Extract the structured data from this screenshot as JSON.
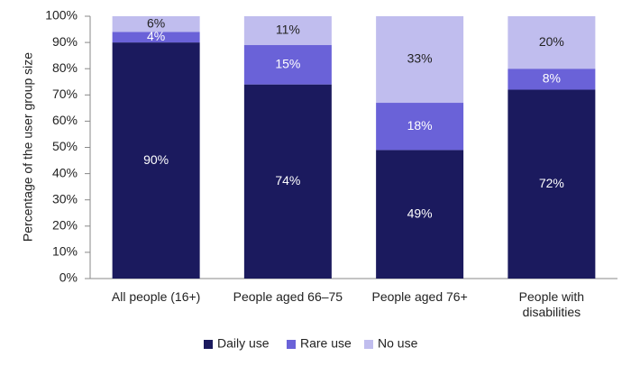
{
  "chart_data": {
    "type": "stacked-bar",
    "y_label": "Percentage of the user group size",
    "categories": [
      "All people (16+)",
      "People aged 66–75",
      "People aged 76+",
      "People with disabilities"
    ],
    "series": [
      {
        "name": "Daily use",
        "color": "#1b1a5e",
        "values": [
          90,
          74,
          49,
          72
        ],
        "value_labels": [
          "90%",
          "74%",
          "49%",
          "72%"
        ]
      },
      {
        "name": "Rare use",
        "color": "#6a62d8",
        "values": [
          4,
          15,
          18,
          8
        ],
        "value_labels": [
          "4%",
          "15%",
          "18%",
          "8%"
        ]
      },
      {
        "name": "No use",
        "color": "#c0bdee",
        "values": [
          6,
          11,
          33,
          20
        ],
        "value_labels": [
          "6%",
          "11%",
          "33%",
          "20%"
        ]
      }
    ],
    "ylim": [
      0,
      100
    ],
    "yticks": [
      {
        "value": 0,
        "label": "0%"
      },
      {
        "value": 10,
        "label": "10%"
      },
      {
        "value": 20,
        "label": "20%"
      },
      {
        "value": 30,
        "label": "30%"
      },
      {
        "value": 40,
        "label": "40%"
      },
      {
        "value": 50,
        "label": "50%"
      },
      {
        "value": 60,
        "label": "60%"
      },
      {
        "value": 70,
        "label": "70%"
      },
      {
        "value": 80,
        "label": "80%"
      },
      {
        "value": 90,
        "label": "90%"
      },
      {
        "value": 100,
        "label": "100%"
      }
    ]
  }
}
